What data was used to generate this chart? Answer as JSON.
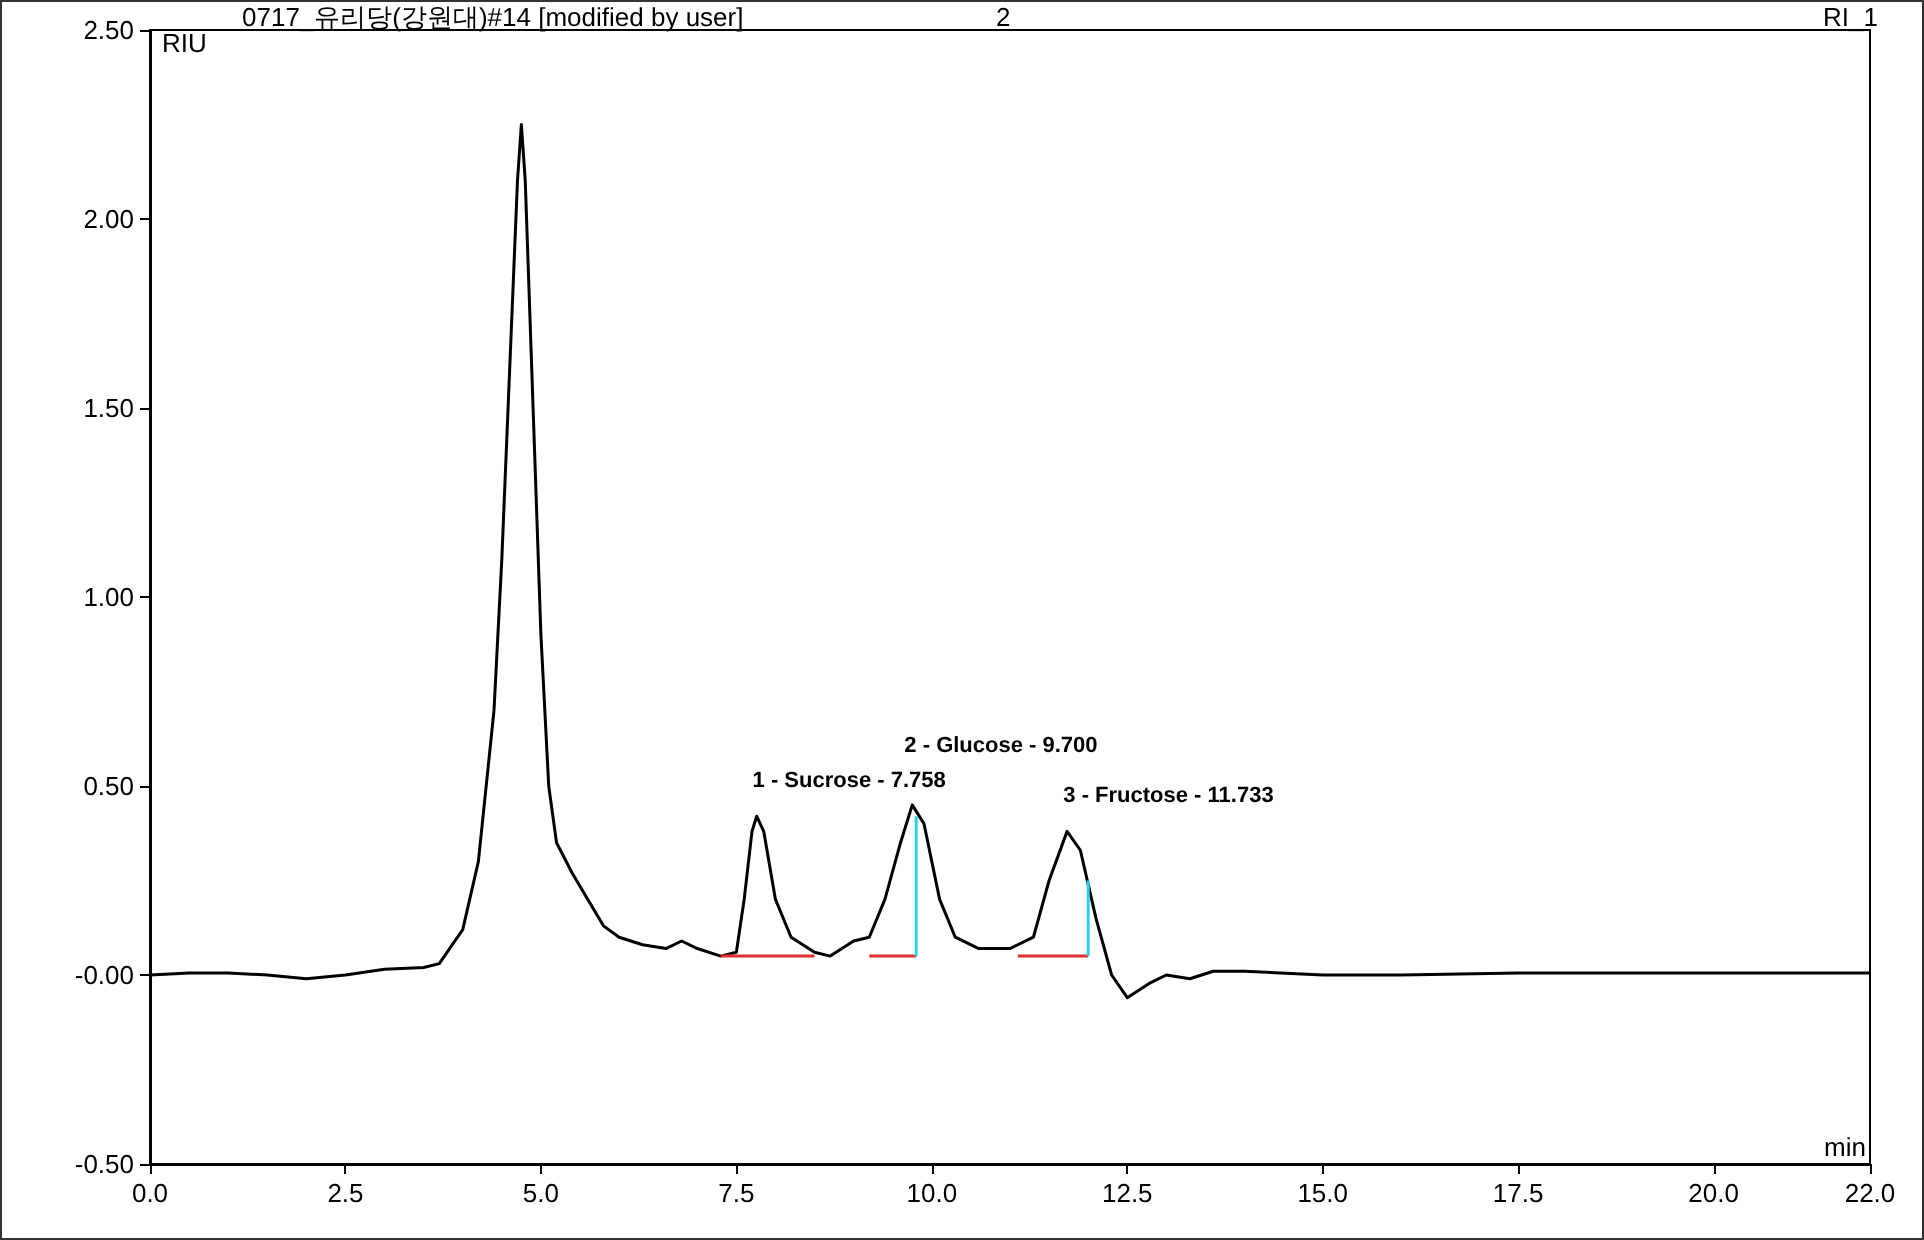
{
  "chart_data": {
    "type": "line",
    "title": "0717_유리당(강원대)#14 [modified by user]",
    "subtitle": "2",
    "ylabel": "RIU",
    "xlabel": "min",
    "annotations": [
      "RI_1",
      {
        "text": "1 - Sucrose - 7.758",
        "x": 7.758,
        "y": 0.42
      },
      {
        "text": "2 - Glucose - 9.700",
        "x": 9.7,
        "y": 0.45
      },
      {
        "text": "3 - Fructose - 11.733",
        "x": 11.733,
        "y": 0.38
      }
    ],
    "xlim": [
      0,
      22
    ],
    "ylim": [
      -0.5,
      2.5
    ],
    "xticks": [
      {
        "value": 0,
        "label": "0.0"
      },
      {
        "value": 2.5,
        "label": "2.5"
      },
      {
        "value": 5,
        "label": "5.0"
      },
      {
        "value": 7.5,
        "label": "7.5"
      },
      {
        "value": 10,
        "label": "10.0"
      },
      {
        "value": 12.5,
        "label": "12.5"
      },
      {
        "value": 15,
        "label": "15.0"
      },
      {
        "value": 17.5,
        "label": "17.5"
      },
      {
        "value": 20,
        "label": "20.0"
      },
      {
        "value": 22,
        "label": "22.0"
      }
    ],
    "yticks": [
      {
        "value": -0.5,
        "label": "-0.50"
      },
      {
        "value": 0,
        "label": "-0.00"
      },
      {
        "value": 0.5,
        "label": "0.50"
      },
      {
        "value": 1,
        "label": "1.00"
      },
      {
        "value": 1.5,
        "label": "1.50"
      },
      {
        "value": 2,
        "label": "2.00"
      },
      {
        "value": 2.5,
        "label": "2.50"
      }
    ],
    "grid": false,
    "marker": "none",
    "line_style": "solid",
    "series": [
      {
        "color": "#000000",
        "x": [
          0,
          0.5,
          1.0,
          1.5,
          2.0,
          2.5,
          3.0,
          3.5,
          3.7,
          4.0,
          4.2,
          4.4,
          4.5,
          4.6,
          4.7,
          4.75,
          4.8,
          4.9,
          5.0,
          5.1,
          5.2,
          5.4,
          5.6,
          5.8,
          6.0,
          6.3,
          6.6,
          6.8,
          7.0,
          7.3,
          7.5,
          7.6,
          7.7,
          7.76,
          7.85,
          8.0,
          8.2,
          8.5,
          8.7,
          9.0,
          9.2,
          9.4,
          9.6,
          9.75,
          9.9,
          10.1,
          10.3,
          10.6,
          11.0,
          11.3,
          11.5,
          11.73,
          11.9,
          12.1,
          12.3,
          12.5,
          12.8,
          13.0,
          13.3,
          13.6,
          14.0,
          15.0,
          16.0,
          17.5,
          19.0,
          20.0,
          21.0,
          22.0
        ],
        "values": [
          0,
          0.005,
          0.005,
          0,
          -0.01,
          0,
          0.015,
          0.02,
          0.03,
          0.12,
          0.3,
          0.7,
          1.1,
          1.6,
          2.1,
          2.25,
          2.1,
          1.5,
          0.9,
          0.5,
          0.35,
          0.27,
          0.2,
          0.13,
          0.1,
          0.08,
          0.07,
          0.09,
          0.07,
          0.05,
          0.06,
          0.2,
          0.38,
          0.42,
          0.38,
          0.2,
          0.1,
          0.06,
          0.05,
          0.09,
          0.1,
          0.2,
          0.35,
          0.45,
          0.4,
          0.2,
          0.1,
          0.07,
          0.07,
          0.1,
          0.25,
          0.38,
          0.33,
          0.15,
          0,
          -0.06,
          -0.02,
          0,
          -0.01,
          0.01,
          0.01,
          0,
          0,
          0.005,
          0.005,
          0.005,
          0.005,
          0.005
        ]
      },
      {
        "color": "#e03030",
        "x": [
          7.3,
          8.5
        ],
        "values": [
          0.05,
          0.05
        ]
      },
      {
        "color": "#e03030",
        "x": [
          9.2,
          9.8
        ],
        "values": [
          0.05,
          0.05
        ]
      },
      {
        "color": "#e03030",
        "x": [
          11.1,
          12.0
        ],
        "values": [
          0.05,
          0.05
        ]
      },
      {
        "color": "#30d0e0",
        "x": [
          9.8,
          9.8
        ],
        "values": [
          0.05,
          0.42
        ]
      },
      {
        "color": "#30d0e0",
        "x": [
          12.0,
          12.0
        ],
        "values": [
          0.05,
          0.25
        ]
      }
    ]
  }
}
